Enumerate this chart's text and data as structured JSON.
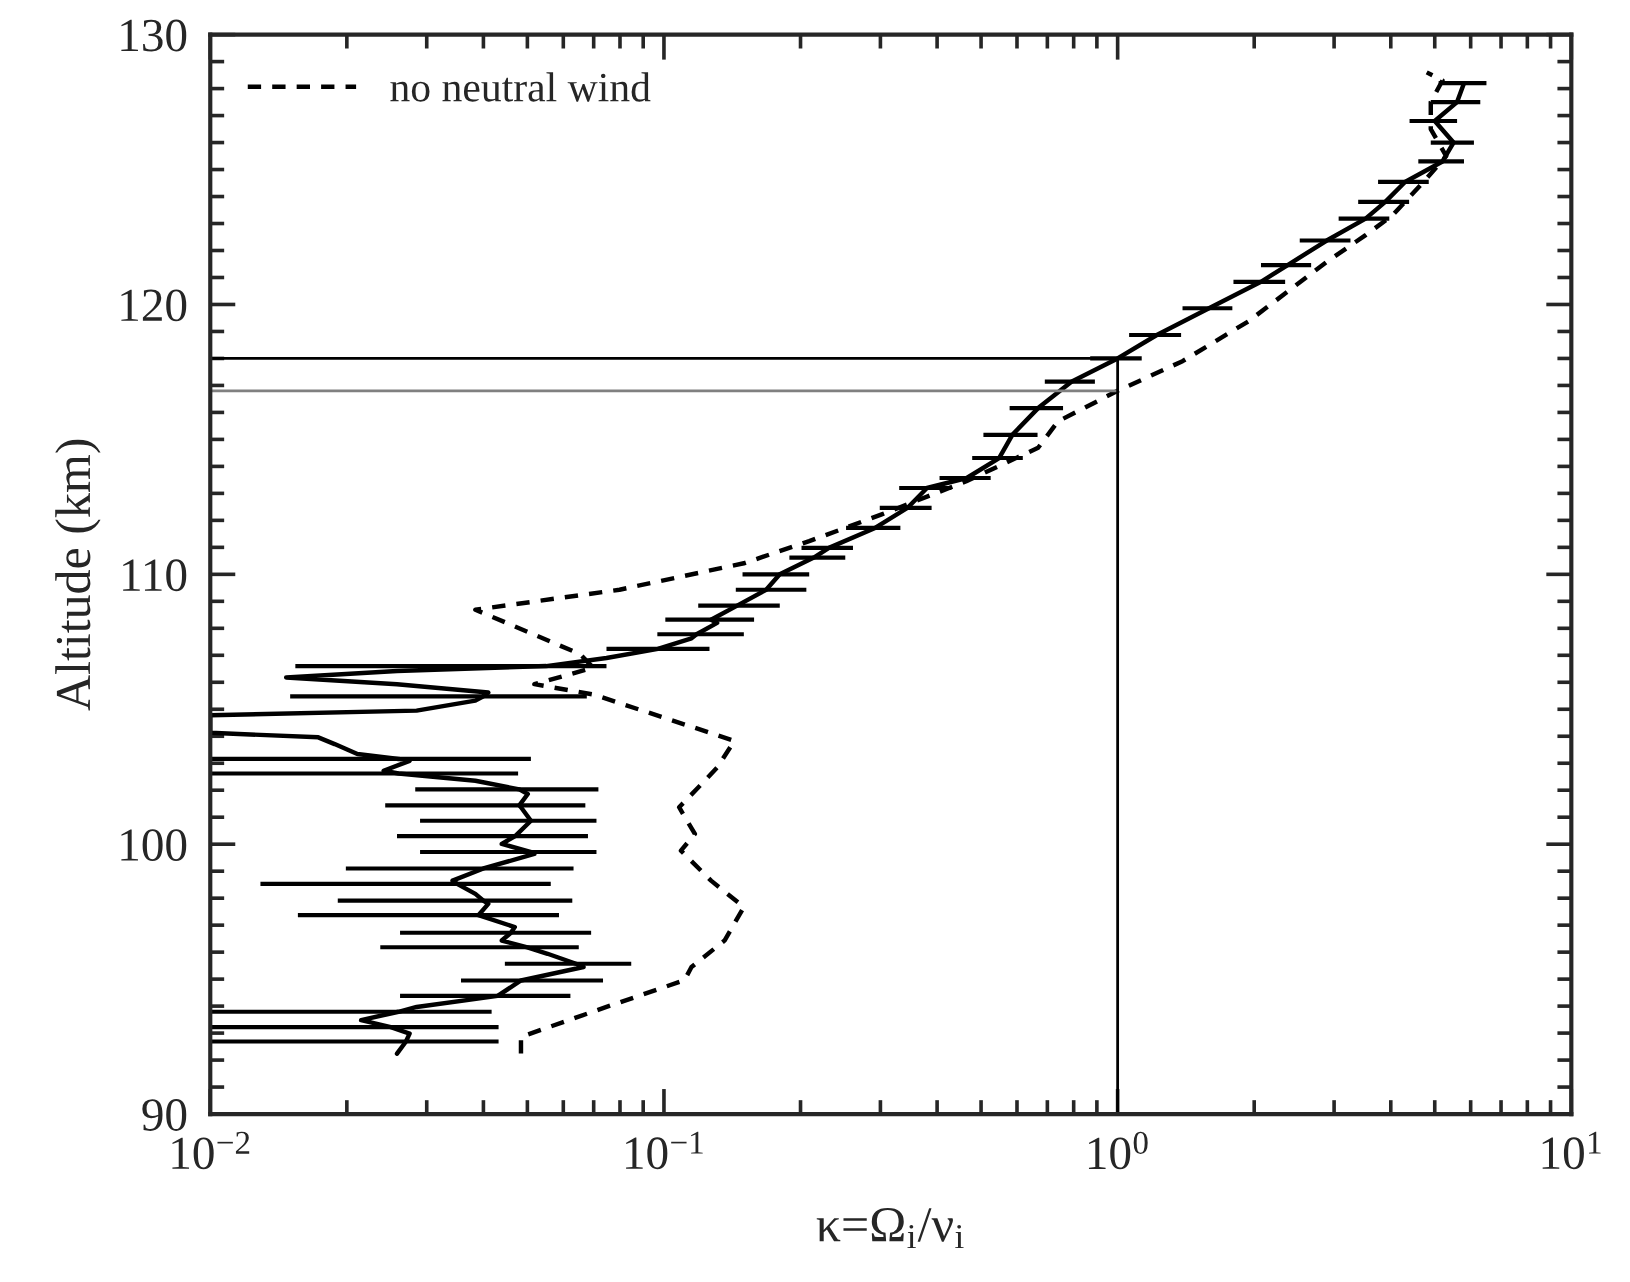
{
  "chart_data": {
    "type": "line",
    "xlabel": "κ=Ω$_{i}$/ν$_{i}$",
    "ylabel": "Altitude (km)",
    "log": "x",
    "xlim": [
      0.01,
      10
    ],
    "ylim": [
      90,
      130
    ],
    "xticks": [
      {
        "value": 0.01,
        "label": "10$^{−2}$"
      },
      {
        "value": 0.1,
        "label": "10$^{−1}$"
      },
      {
        "value": 1,
        "label": "10$^{0}$"
      },
      {
        "value": 10,
        "label": "10$^{1}$"
      }
    ],
    "yticks": [
      90,
      100,
      110,
      120,
      130
    ],
    "grid": false,
    "legend": "top left",
    "series": [
      {
        "color": "#000000",
        "line_style": "solid",
        "values": [
          92.24,
          92.69,
          92.98,
          93.22,
          93.48,
          93.79,
          93.97,
          94.38,
          94.95,
          95.45,
          95.57,
          95.94,
          96.18,
          96.43,
          96.72,
          96.93,
          97.37,
          97.79,
          97.91,
          98.16,
          98.53,
          98.65,
          99.1,
          99.64,
          99.71,
          100.01,
          100.3,
          100.87,
          101.37,
          101.44,
          101.86,
          102.03,
          102.35,
          102.62,
          102.72,
          103.09,
          103.16,
          103.34,
          103.71,
          103.96,
          104.13,
          104.78,
          104.95,
          105.32,
          105.48,
          105.62,
          105.93,
          106.18,
          106.42,
          106.6,
          106.9,
          107.24,
          107.63,
          107.78,
          108.2,
          108.32,
          108.84,
          109.43,
          110.0,
          110.62,
          110.98,
          111.72,
          112.46,
          113.2,
          113.57,
          114.31,
          115.17,
          116.16,
          117.14,
          118.0,
          118.87,
          119.86,
          120.84,
          121.46,
          122.37,
          123.18,
          123.8,
          124.54,
          125.3,
          126.0,
          126.8,
          127.5,
          128.2
        ],
        "x": [
          0.0258,
          0.027,
          0.0275,
          0.025,
          0.0215,
          0.026,
          0.0285,
          0.043,
          0.0484,
          0.0665,
          0.064,
          0.0554,
          0.05,
          0.0439,
          0.046,
          0.0469,
          0.039,
          0.041,
          0.04,
          0.0384,
          0.035,
          0.0342,
          0.04,
          0.0518,
          0.051,
          0.0439,
          0.047,
          0.0509,
          0.0484,
          0.048,
          0.0501,
          0.048,
          0.0384,
          0.026,
          0.0241,
          0.0275,
          0.026,
          0.0211,
          0.0188,
          0.0173,
          0.01,
          0.01,
          0.0285,
          0.0384,
          0.04,
          0.041,
          0.0258,
          0.0147,
          0.0258,
          0.055,
          0.0747,
          0.097,
          0.115,
          0.118,
          0.131,
          0.127,
          0.145,
          0.168,
          0.18,
          0.214,
          0.231,
          0.292,
          0.344,
          0.38,
          0.465,
          0.548,
          0.586,
          0.668,
          0.791,
          1.0,
          1.22,
          1.59,
          2.07,
          2.37,
          2.89,
          3.52,
          3.89,
          4.3,
          5.2,
          5.5,
          5.0,
          5.6,
          5.8
        ],
        "xerrors": [
          null,
          [
            0.01,
            0.0432
          ],
          null,
          [
            0.01,
            0.0432
          ],
          null,
          [
            0.01,
            0.0417
          ],
          null,
          [
            0.0262,
            0.0622
          ],
          [
            0.0357,
            0.0734
          ],
          null,
          [
            0.0446,
            0.0847
          ],
          null,
          [
            0.0237,
            0.0649
          ],
          null,
          [
            0.0262,
            0.0691
          ],
          null,
          [
            0.0156,
            0.0587
          ],
          null,
          [
            0.0191,
            0.0628
          ],
          null,
          [
            0.0129,
            0.0563
          ],
          null,
          [
            0.0199,
            0.0632
          ],
          null,
          [
            0.029,
            0.071
          ],
          null,
          [
            0.0258,
            0.068
          ],
          [
            0.029,
            0.071
          ],
          null,
          [
            0.0243,
            0.0671
          ],
          null,
          [
            0.0283,
            0.0717
          ],
          null,
          [
            0.01,
            0.0477
          ],
          null,
          null,
          [
            0.01,
            0.0509
          ],
          null,
          null,
          null,
          null,
          null,
          null,
          null,
          [
            0.015,
            0.0676
          ],
          null,
          null,
          null,
          null,
          [
            0.0154,
            0.0747
          ],
          null,
          [
            0.0747,
            0.126
          ],
          null,
          [
            0.0967,
            0.15
          ],
          null,
          [
            0.1007,
            0.158
          ],
          [
            0.119,
            0.18
          ],
          [
            0.144,
            0.206
          ],
          [
            0.149,
            0.209
          ],
          [
            0.189,
            0.251
          ],
          0.03,
          0.04,
          0.045,
          0.05,
          0.06,
          0.07,
          0.08,
          0.09,
          0.1,
          0.13,
          0.16,
          0.2,
          0.27,
          0.3,
          0.37,
          0.45,
          0.5,
          0.55,
          0.6,
          0.6,
          0.6,
          0.7,
          0.7
        ]
      },
      {
        "name": "no neutral wind",
        "color": "#000000",
        "line_style": "dashed",
        "values": [
          92.24,
          92.86,
          93.97,
          94.96,
          95.45,
          96.43,
          97.67,
          98.65,
          99.76,
          100.38,
          101.37,
          102.1,
          102.84,
          103.83,
          105.55,
          105.93,
          106.54,
          107.04,
          108.69,
          109.43,
          110.41,
          111.23,
          112.22,
          113.45,
          114.69,
          115.67,
          116.8,
          117.9,
          119.37,
          120.84,
          121.58,
          122.57,
          123.3,
          124.5,
          125.5,
          126.5,
          127.5,
          128.3,
          128.6
        ],
        "x": [
          0.0484,
          0.0484,
          0.0747,
          0.111,
          0.115,
          0.136,
          0.15,
          0.127,
          0.109,
          0.117,
          0.108,
          0.119,
          0.131,
          0.143,
          0.0698,
          0.0518,
          0.0698,
          0.0654,
          0.0384,
          0.0798,
          0.15,
          0.209,
          0.302,
          0.464,
          0.668,
          0.739,
          1.0,
          1.39,
          1.94,
          2.53,
          2.89,
          3.52,
          4.03,
          4.7,
          5.3,
          4.9,
          4.9,
          5.2,
          4.8
        ]
      }
    ],
    "ref_lines": [
      {
        "axis": "y",
        "value": 118.0,
        "color": "#000000"
      },
      {
        "axis": "y",
        "value": 116.8,
        "color": "#808080"
      },
      {
        "axis": "x",
        "value": 1,
        "color": "#000000"
      }
    ]
  }
}
